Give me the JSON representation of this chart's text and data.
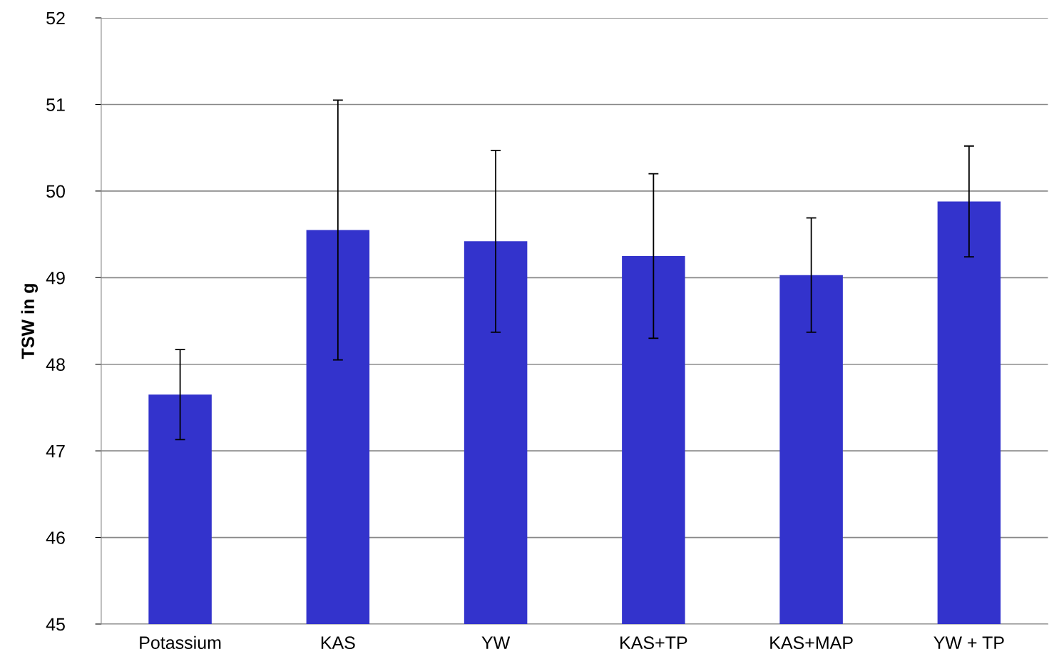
{
  "chart_data": {
    "type": "bar",
    "ylabel": "TSW in g",
    "categories": [
      "Potassium",
      "KAS",
      "YW",
      "KAS+TP",
      "KAS+MAP",
      "YW + TP"
    ],
    "values": [
      47.65,
      49.55,
      49.42,
      49.25,
      49.03,
      49.88
    ],
    "errors": [
      0.52,
      1.5,
      1.05,
      0.95,
      0.66,
      0.64
    ],
    "color": "#3333cc",
    "ylim": [
      45,
      52
    ],
    "yticks": [
      45,
      46,
      47,
      48,
      49,
      50,
      51,
      52
    ],
    "grid": "y",
    "legend": false
  }
}
